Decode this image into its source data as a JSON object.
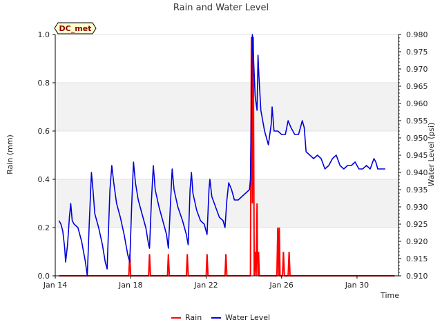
{
  "chart_data": {
    "type": "line",
    "title": "Rain and Water Level",
    "xlabel": "Time",
    "ylabel_left": "Rain (mm)",
    "ylabel_right": "Water Level (psi)",
    "site_badge": "DC_met",
    "x_ticks": [
      "Jan 14",
      "Jan 18",
      "Jan 22",
      "Jan 26",
      "Jan 30"
    ],
    "xlim_days": [
      14.0,
      32.2
    ],
    "ylim_left": [
      0.0,
      1.0
    ],
    "ylim_right": [
      0.91,
      0.98
    ],
    "left_ticks": [
      "0.0",
      "0.2",
      "0.4",
      "0.6",
      "0.8",
      "1.0"
    ],
    "right_ticks": [
      "0.910",
      "0.915",
      "0.920",
      "0.925",
      "0.930",
      "0.935",
      "0.940",
      "0.945",
      "0.950",
      "0.955",
      "0.960",
      "0.965",
      "0.970",
      "0.975",
      "0.980"
    ],
    "grid": "horizontal bands",
    "legend_position": "bottom-center",
    "colors": {
      "rain": "#ff0000",
      "water": "#0000dd",
      "band": "#f2f2f2",
      "badge_fill": "#ffffcc"
    },
    "series": [
      {
        "name": "Rain",
        "axis": "left",
        "points": [
          [
            14.2,
            0
          ],
          [
            17.9,
            0
          ],
          [
            17.95,
            0.09
          ],
          [
            18.0,
            0
          ],
          [
            18.95,
            0
          ],
          [
            19.0,
            0.09
          ],
          [
            19.05,
            0
          ],
          [
            19.95,
            0
          ],
          [
            20.0,
            0.09
          ],
          [
            20.05,
            0
          ],
          [
            20.95,
            0
          ],
          [
            21.0,
            0.09
          ],
          [
            21.05,
            0
          ],
          [
            22.0,
            0
          ],
          [
            22.05,
            0.09
          ],
          [
            22.1,
            0
          ],
          [
            23.0,
            0
          ],
          [
            23.05,
            0.09
          ],
          [
            23.1,
            0
          ],
          [
            24.35,
            0
          ],
          [
            24.4,
            0.99
          ],
          [
            24.45,
            0.3
          ],
          [
            24.5,
            0.99
          ],
          [
            24.55,
            0
          ],
          [
            24.6,
            0.1
          ],
          [
            24.65,
            0
          ],
          [
            24.7,
            0.3
          ],
          [
            24.72,
            0.1
          ],
          [
            24.75,
            0
          ],
          [
            24.78,
            0.1
          ],
          [
            24.82,
            0
          ],
          [
            25.75,
            0
          ],
          [
            25.8,
            0.2
          ],
          [
            25.85,
            0
          ],
          [
            25.88,
            0.2
          ],
          [
            25.92,
            0
          ],
          [
            26.05,
            0
          ],
          [
            26.1,
            0.1
          ],
          [
            26.15,
            0
          ],
          [
            26.35,
            0
          ],
          [
            26.4,
            0.1
          ],
          [
            26.45,
            0
          ],
          [
            32.0,
            0
          ]
        ]
      },
      {
        "name": "Water Level",
        "axis": "right",
        "points": [
          [
            14.2,
            0.926
          ],
          [
            14.3,
            0.925
          ],
          [
            14.4,
            0.923
          ],
          [
            14.5,
            0.918
          ],
          [
            14.55,
            0.914
          ],
          [
            14.65,
            0.919
          ],
          [
            14.75,
            0.927
          ],
          [
            14.82,
            0.931
          ],
          [
            14.9,
            0.926
          ],
          [
            15.0,
            0.925
          ],
          [
            15.2,
            0.924
          ],
          [
            15.4,
            0.92
          ],
          [
            15.6,
            0.914
          ],
          [
            15.7,
            0.91
          ],
          [
            15.8,
            0.925
          ],
          [
            15.92,
            0.94
          ],
          [
            16.0,
            0.935
          ],
          [
            16.1,
            0.928
          ],
          [
            16.3,
            0.924
          ],
          [
            16.5,
            0.919
          ],
          [
            16.65,
            0.914
          ],
          [
            16.75,
            0.912
          ],
          [
            16.8,
            0.92
          ],
          [
            16.9,
            0.935
          ],
          [
            17.0,
            0.942
          ],
          [
            17.1,
            0.937
          ],
          [
            17.25,
            0.931
          ],
          [
            17.45,
            0.927
          ],
          [
            17.65,
            0.922
          ],
          [
            17.85,
            0.916
          ],
          [
            17.95,
            0.914
          ],
          [
            18.05,
            0.93
          ],
          [
            18.15,
            0.943
          ],
          [
            18.25,
            0.937
          ],
          [
            18.4,
            0.932
          ],
          [
            18.6,
            0.928
          ],
          [
            18.8,
            0.924
          ],
          [
            18.95,
            0.919
          ],
          [
            19.0,
            0.918
          ],
          [
            19.1,
            0.932
          ],
          [
            19.2,
            0.942
          ],
          [
            19.3,
            0.935
          ],
          [
            19.5,
            0.93
          ],
          [
            19.7,
            0.926
          ],
          [
            19.9,
            0.922
          ],
          [
            20.0,
            0.918
          ],
          [
            20.1,
            0.93
          ],
          [
            20.2,
            0.941
          ],
          [
            20.3,
            0.935
          ],
          [
            20.5,
            0.93
          ],
          [
            20.75,
            0.926
          ],
          [
            20.95,
            0.922
          ],
          [
            21.05,
            0.919
          ],
          [
            21.15,
            0.935
          ],
          [
            21.22,
            0.94
          ],
          [
            21.3,
            0.934
          ],
          [
            21.5,
            0.929
          ],
          [
            21.7,
            0.926
          ],
          [
            21.9,
            0.925
          ],
          [
            22.05,
            0.922
          ],
          [
            22.15,
            0.935
          ],
          [
            22.2,
            0.938
          ],
          [
            22.3,
            0.933
          ],
          [
            22.5,
            0.93
          ],
          [
            22.7,
            0.927
          ],
          [
            22.9,
            0.926
          ],
          [
            23.0,
            0.924
          ],
          [
            23.1,
            0.932
          ],
          [
            23.2,
            0.937
          ],
          [
            23.35,
            0.935
          ],
          [
            23.5,
            0.932
          ],
          [
            23.7,
            0.932
          ],
          [
            23.9,
            0.933
          ],
          [
            24.1,
            0.934
          ],
          [
            24.3,
            0.935
          ],
          [
            24.35,
            0.938
          ],
          [
            24.45,
            0.98
          ],
          [
            24.5,
            0.975
          ],
          [
            24.6,
            0.962
          ],
          [
            24.7,
            0.958
          ],
          [
            24.75,
            0.974
          ],
          [
            24.8,
            0.968
          ],
          [
            24.9,
            0.958
          ],
          [
            25.1,
            0.952
          ],
          [
            25.3,
            0.948
          ],
          [
            25.45,
            0.954
          ],
          [
            25.5,
            0.959
          ],
          [
            25.6,
            0.952
          ],
          [
            25.8,
            0.952
          ],
          [
            26.0,
            0.951
          ],
          [
            26.2,
            0.951
          ],
          [
            26.35,
            0.955
          ],
          [
            26.5,
            0.953
          ],
          [
            26.7,
            0.951
          ],
          [
            26.9,
            0.951
          ],
          [
            27.1,
            0.955
          ],
          [
            27.2,
            0.953
          ],
          [
            27.3,
            0.946
          ],
          [
            27.5,
            0.945
          ],
          [
            27.7,
            0.944
          ],
          [
            27.9,
            0.945
          ],
          [
            28.1,
            0.944
          ],
          [
            28.3,
            0.941
          ],
          [
            28.5,
            0.942
          ],
          [
            28.7,
            0.944
          ],
          [
            28.9,
            0.945
          ],
          [
            29.1,
            0.942
          ],
          [
            29.3,
            0.941
          ],
          [
            29.5,
            0.942
          ],
          [
            29.7,
            0.942
          ],
          [
            29.9,
            0.943
          ],
          [
            30.1,
            0.941
          ],
          [
            30.3,
            0.941
          ],
          [
            30.5,
            0.942
          ],
          [
            30.7,
            0.941
          ],
          [
            30.9,
            0.944
          ],
          [
            31.0,
            0.943
          ],
          [
            31.1,
            0.941
          ],
          [
            31.3,
            0.941
          ],
          [
            31.5,
            0.941
          ]
        ]
      }
    ]
  }
}
